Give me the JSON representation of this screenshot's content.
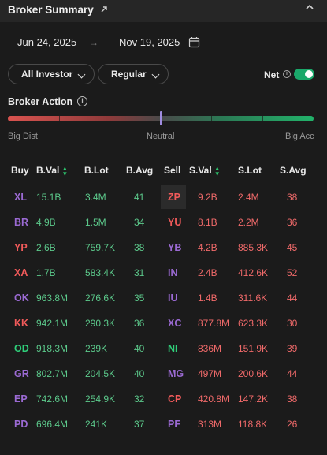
{
  "header": {
    "title": "Broker Summary",
    "external_icon": "external-link-icon",
    "collapse_icon": "chevron-up-icon"
  },
  "dates": {
    "start": "Jun 24, 2025",
    "end": "Nov 19, 2025",
    "arrow": "→"
  },
  "filters": {
    "investor": "All Investor",
    "market": "Regular",
    "net_label": "Net",
    "net_on": true
  },
  "broker_action": {
    "label": "Broker Action",
    "left": "Big Dist",
    "mid": "Neutral",
    "right": "Big Acc",
    "level": 0.5
  },
  "columns": {
    "buy": "Buy",
    "bval": "B.Val",
    "blot": "B.Lot",
    "bavg": "B.Avg",
    "sell": "Sell",
    "sval": "S.Val",
    "slot": "S.Lot",
    "savg": "S.Avg"
  },
  "colors": {
    "purple": "#9b6ad3",
    "red": "#f05a5a",
    "green": "#2fcf7a",
    "buy_num": "#5cc98b",
    "sell_num": "#f06a6a",
    "toggle": "#1aa86a"
  },
  "rows": [
    {
      "buy": "XL",
      "bc": "purple",
      "bval": "15.1B",
      "blot": "3.4M",
      "bavg": "41",
      "sell": "ZP",
      "sc": "red",
      "sval": "9.2B",
      "slot": "2.4M",
      "savg": "38"
    },
    {
      "buy": "BR",
      "bc": "purple",
      "bval": "4.9B",
      "blot": "1.5M",
      "bavg": "34",
      "sell": "YU",
      "sc": "red",
      "sval": "8.1B",
      "slot": "2.2M",
      "savg": "36"
    },
    {
      "buy": "YP",
      "bc": "red",
      "bval": "2.6B",
      "blot": "759.7K",
      "bavg": "38",
      "sell": "YB",
      "sc": "purple",
      "sval": "4.2B",
      "slot": "885.3K",
      "savg": "45"
    },
    {
      "buy": "XA",
      "bc": "red",
      "bval": "1.7B",
      "blot": "583.4K",
      "bavg": "31",
      "sell": "IN",
      "sc": "purple",
      "sval": "2.4B",
      "slot": "412.6K",
      "savg": "52"
    },
    {
      "buy": "OK",
      "bc": "purple",
      "bval": "963.8M",
      "blot": "276.6K",
      "bavg": "35",
      "sell": "IU",
      "sc": "purple",
      "sval": "1.4B",
      "slot": "311.6K",
      "savg": "44"
    },
    {
      "buy": "KK",
      "bc": "red",
      "bval": "942.1M",
      "blot": "290.3K",
      "bavg": "36",
      "sell": "XC",
      "sc": "purple",
      "sval": "877.8M",
      "slot": "623.3K",
      "savg": "30"
    },
    {
      "buy": "OD",
      "bc": "green",
      "bval": "918.3M",
      "blot": "239K",
      "bavg": "40",
      "sell": "NI",
      "sc": "green",
      "sval": "836M",
      "slot": "151.9K",
      "savg": "39"
    },
    {
      "buy": "GR",
      "bc": "purple",
      "bval": "802.7M",
      "blot": "204.5K",
      "bavg": "40",
      "sell": "MG",
      "sc": "purple",
      "sval": "497M",
      "slot": "200.6K",
      "savg": "44"
    },
    {
      "buy": "EP",
      "bc": "purple",
      "bval": "742.6M",
      "blot": "254.9K",
      "bavg": "32",
      "sell": "CP",
      "sc": "red",
      "sval": "420.8M",
      "slot": "147.2K",
      "savg": "38"
    },
    {
      "buy": "PD",
      "bc": "purple",
      "bval": "696.4M",
      "blot": "241K",
      "bavg": "37",
      "sell": "PF",
      "sc": "purple",
      "sval": "313M",
      "slot": "118.8K",
      "savg": "26"
    }
  ]
}
